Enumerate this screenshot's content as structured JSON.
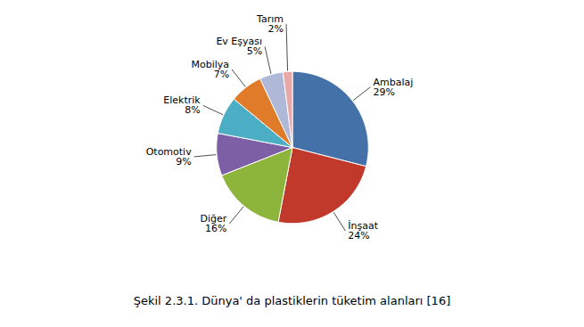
{
  "chart_data": {
    "type": "pie",
    "caption": "Şekil 2.3.1. Dünya' da plastiklerin tüketim alanları [16]",
    "categories": [
      "Ambalaj",
      "İnşaat",
      "Diğer",
      "Otomotiv",
      "Elektrik",
      "Mobilya",
      "Ev Eşyası",
      "Tarım"
    ],
    "values": [
      29,
      24,
      16,
      9,
      8,
      7,
      5,
      2
    ],
    "value_labels": [
      "29%",
      "24%",
      "16%",
      "9%",
      "8%",
      "7%",
      "5%",
      "2%"
    ],
    "colors": [
      "#4472a8",
      "#c0392b",
      "#8db53b",
      "#7d5fa5",
      "#4baec4",
      "#e07b2a",
      "#b0b8d8",
      "#e8a8a8"
    ],
    "data_labels": true
  }
}
